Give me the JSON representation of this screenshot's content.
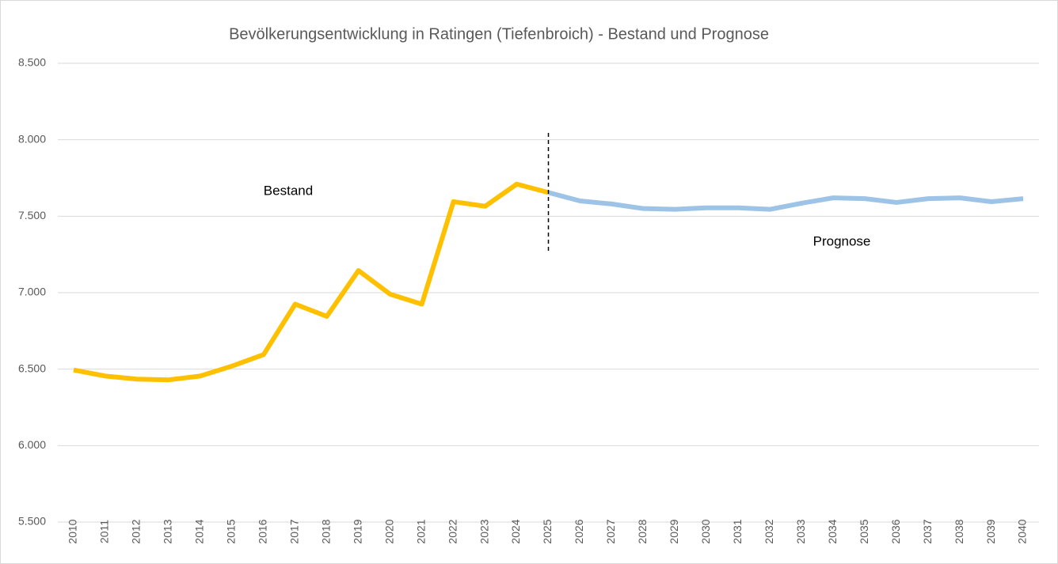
{
  "chart_data": {
    "type": "line",
    "title": "Bevölkerungsentwicklung  in Ratingen (Tiefenbroich) - Bestand und Prognose",
    "categories": [
      "2010",
      "2011",
      "2012",
      "2013",
      "2014",
      "2015",
      "2016",
      "2017",
      "2018",
      "2019",
      "2020",
      "2021",
      "2022",
      "2023",
      "2024",
      "2025",
      "2026",
      "2027",
      "2028",
      "2029",
      "2030",
      "2031",
      "2032",
      "2033",
      "2034",
      "2035",
      "2036",
      "2037",
      "2038",
      "2039",
      "2040"
    ],
    "series": [
      {
        "name": "Bestand",
        "color": "#ffc000",
        "values": [
          6495,
          6455,
          6435,
          6430,
          6455,
          6520,
          6595,
          6925,
          6845,
          7145,
          6990,
          6925,
          7595,
          7565,
          7710,
          7655,
          null,
          null,
          null,
          null,
          null,
          null,
          null,
          null,
          null,
          null,
          null,
          null,
          null,
          null,
          null
        ]
      },
      {
        "name": "Prognose",
        "color": "#9dc3e6",
        "values": [
          null,
          null,
          null,
          null,
          null,
          null,
          null,
          null,
          null,
          null,
          null,
          null,
          null,
          null,
          null,
          7655,
          7600,
          7580,
          7550,
          7545,
          7555,
          7555,
          7545,
          7585,
          7620,
          7615,
          7590,
          7615,
          7620,
          7595,
          7615
        ]
      }
    ],
    "ylim": [
      5500,
      8500
    ],
    "yticks": [
      {
        "value": 5500,
        "label": "5.500"
      },
      {
        "value": 6000,
        "label": "6.000"
      },
      {
        "value": 6500,
        "label": "6.500"
      },
      {
        "value": 7000,
        "label": "7.000"
      },
      {
        "value": 7500,
        "label": "7.500"
      },
      {
        "value": 8000,
        "label": "8.000"
      },
      {
        "value": 8500,
        "label": "8.500"
      }
    ],
    "grid": true
  }
}
